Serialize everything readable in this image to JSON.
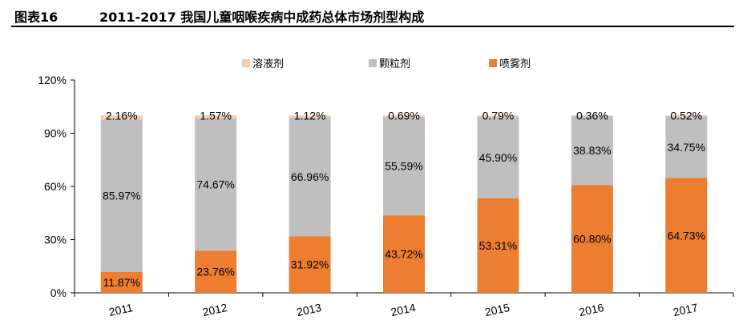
{
  "header": {
    "figure_label": "图表16",
    "title": "2011-2017 我国儿童咽喉疾病中成药总体市场剂型构成"
  },
  "chart_data": {
    "type": "bar",
    "stacked": true,
    "title": "",
    "xlabel": "",
    "ylabel": "",
    "ylim": [
      0,
      120
    ],
    "yticks": [
      "0%",
      "30%",
      "60%",
      "90%",
      "120%"
    ],
    "categories": [
      "2011",
      "2012",
      "2013",
      "2014",
      "2015",
      "2016",
      "2017"
    ],
    "series": [
      {
        "name": "喷雾剂",
        "color": "#ED7D31",
        "values": [
          11.87,
          23.76,
          31.92,
          43.72,
          53.31,
          60.8,
          64.73
        ],
        "labels": [
          "11.87%",
          "23.76%",
          "31.92%",
          "43.72%",
          "53.31%",
          "60.80%",
          "64.73%"
        ]
      },
      {
        "name": "颗粒剂",
        "color": "#BFBFBF",
        "values": [
          85.97,
          74.67,
          66.96,
          55.59,
          45.9,
          38.83,
          34.75
        ],
        "labels": [
          "85.97%",
          "74.67%",
          "66.96%",
          "55.59%",
          "45.90%",
          "38.83%",
          "34.75%"
        ]
      },
      {
        "name": "溶液剂",
        "color": "#F8CBAD",
        "values": [
          2.16,
          1.57,
          1.12,
          0.69,
          0.79,
          0.36,
          0.52
        ],
        "labels": [
          "2.16%",
          "1.57%",
          "1.12%",
          "0.69%",
          "0.79%",
          "0.36%",
          "0.52%"
        ]
      }
    ],
    "legend": {
      "position": "top",
      "order": [
        "溶液剂",
        "颗粒剂",
        "喷雾剂"
      ]
    },
    "grid": false
  }
}
